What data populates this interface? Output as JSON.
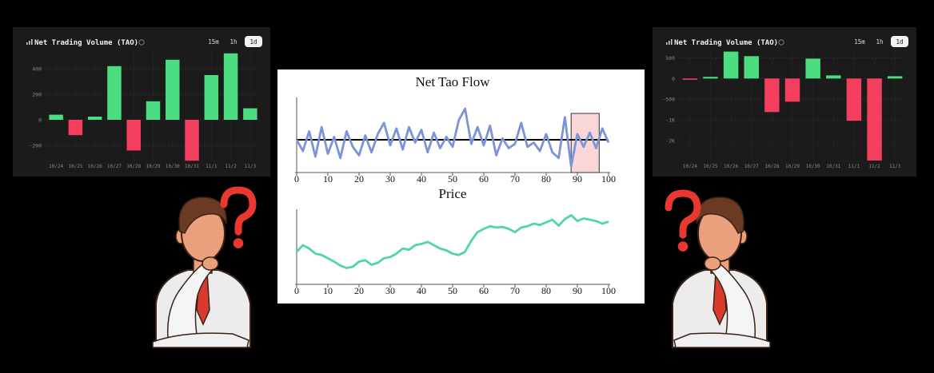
{
  "chart_data": [
    {
      "type": "bar",
      "title": "Net Trading Volume (TAO)",
      "buttons": [
        "15m",
        "1h",
        "1d"
      ],
      "active_button": 2,
      "categories": [
        "10/24",
        "10/25",
        "10/26",
        "10/27",
        "10/28",
        "10/29",
        "10/30",
        "10/31",
        "11/1",
        "11/2",
        "11/3"
      ],
      "values": [
        40,
        -120,
        25,
        420,
        -240,
        145,
        470,
        -320,
        350,
        520,
        90
      ],
      "colors": {
        "positive": "#4ade80",
        "negative": "#f43f5e"
      },
      "ylim": [
        -325,
        525
      ],
      "yticks": [
        -200,
        0,
        200,
        400
      ],
      "grid": true
    },
    {
      "type": "line",
      "title": "Net Tao Flow",
      "color": "#7b93d8",
      "x": [
        0,
        2,
        4,
        6,
        8,
        10,
        12,
        14,
        16,
        18,
        20,
        22,
        24,
        26,
        28,
        30,
        32,
        34,
        36,
        38,
        40,
        42,
        44,
        46,
        48,
        50,
        52,
        54,
        56,
        58,
        60,
        62,
        64,
        66,
        68,
        70,
        72,
        74,
        76,
        78,
        80,
        82,
        84,
        86,
        88,
        90,
        92,
        94,
        96,
        98,
        100
      ],
      "values": [
        0,
        -0.8,
        0.6,
        -1.2,
        0.9,
        -1.0,
        0.2,
        -1.3,
        0.6,
        -0.5,
        -1.1,
        0.3,
        -0.9,
        0.4,
        1.2,
        -0.4,
        0.8,
        -0.7,
        0.9,
        -0.2,
        0.7,
        -0.9,
        0.5,
        -0.6,
        0.2,
        -0.5,
        1.4,
        2.2,
        -0.3,
        0.9,
        -0.4,
        1.0,
        -1.1,
        0.1,
        -0.6,
        -0.3,
        1.2,
        -0.5,
        -0.2,
        -0.8,
        0.4,
        -0.9,
        -1.3,
        1.6,
        -1.9,
        0.4,
        -0.5,
        0.5,
        -0.6,
        0.8,
        -0.2
      ],
      "reference_line": 0,
      "highlight_x": [
        88,
        97
      ],
      "xlim": [
        0,
        100
      ],
      "xticks": [
        0,
        10,
        20,
        30,
        40,
        50,
        60,
        70,
        80,
        90,
        100
      ],
      "ylim": [
        -2.1,
        3
      ]
    },
    {
      "type": "line",
      "title": "Price",
      "color": "#4fd6a4",
      "x": [
        0,
        2,
        4,
        6,
        8,
        10,
        12,
        14,
        16,
        18,
        20,
        22,
        24,
        26,
        28,
        30,
        32,
        34,
        36,
        38,
        40,
        42,
        44,
        46,
        48,
        50,
        52,
        54,
        56,
        58,
        60,
        62,
        64,
        66,
        68,
        70,
        72,
        74,
        76,
        78,
        80,
        82,
        84,
        86,
        88,
        90,
        92,
        94,
        96,
        98,
        100
      ],
      "values": [
        45,
        55,
        50,
        42,
        40,
        35,
        30,
        24,
        20,
        22,
        30,
        32,
        25,
        28,
        35,
        37,
        42,
        50,
        48,
        55,
        57,
        60,
        55,
        50,
        47,
        42,
        40,
        45,
        62,
        75,
        80,
        84,
        82,
        83,
        80,
        75,
        82,
        84,
        88,
        86,
        90,
        94,
        85,
        95,
        101,
        92,
        96,
        94,
        92,
        88,
        91
      ],
      "xlim": [
        0,
        100
      ],
      "xticks": [
        0,
        10,
        20,
        30,
        40,
        50,
        60,
        70,
        80,
        90,
        100
      ],
      "ylim": [
        0,
        110
      ]
    },
    {
      "type": "bar",
      "title": "Net Trading Volume (TAO)",
      "buttons": [
        "15m",
        "1h",
        "1d"
      ],
      "active_button": 2,
      "categories": [
        "10/24",
        "10/25",
        "10/26",
        "10/27",
        "10/28",
        "10/29",
        "10/30",
        "10/31",
        "11/1",
        "11/2",
        "11/3"
      ],
      "values": [
        -30,
        40,
        650,
        540,
        -810,
        -560,
        480,
        75,
        -1020,
        -1980,
        55
      ],
      "colors": {
        "positive": "#4ade80",
        "negative": "#f43f5e"
      },
      "ylim": [
        -2000,
        700
      ],
      "yticks": [
        {
          "value": 500,
          "label": "500"
        },
        0,
        -500,
        {
          "value": -1000,
          "label": "-1K"
        },
        {
          "value": -1500,
          "label": "-2K"
        }
      ],
      "grid": true
    }
  ]
}
